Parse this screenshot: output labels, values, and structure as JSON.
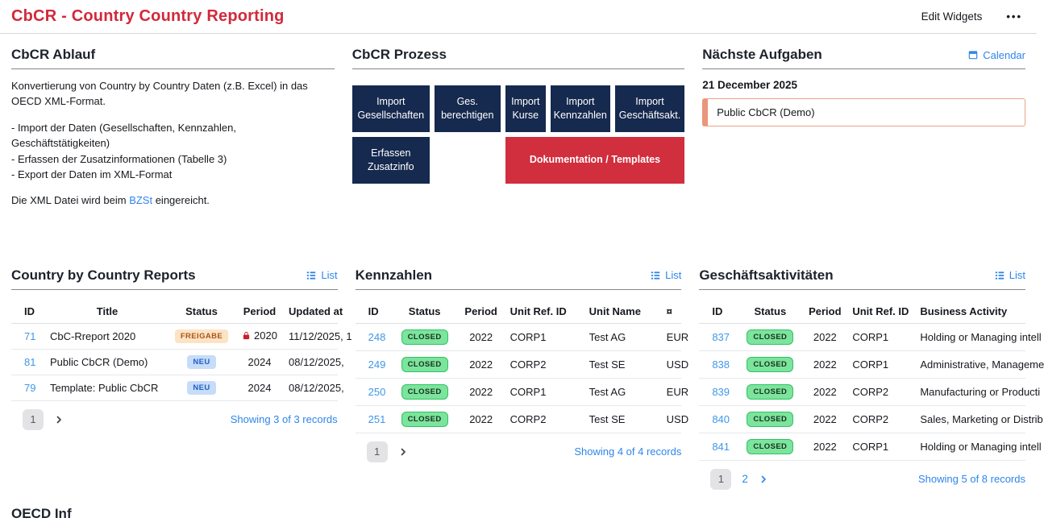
{
  "page": {
    "title": "CbCR - Country Country Reporting",
    "edit_widgets_label": "Edit Widgets",
    "overflow_menu_label": "•••"
  },
  "colors": {
    "page_title_red": "#d2293a",
    "process_navy": "#16294e",
    "process_red": "#d12e3e",
    "link_blue": "#2e86eb",
    "id_link_blue": "#3f97e9",
    "badge_freigabe_bg": "#fce3c5",
    "badge_freigabe_text": "#ad5417",
    "badge_neu_bg": "#c6dcf8",
    "badge_neu_text": "#2060c8",
    "badge_closed_bg": "#7ce49c",
    "badge_closed_border": "#2fc363",
    "task_card_border": "#eda288",
    "task_card_bar": "#e9967a",
    "lock_red": "#c8202f"
  },
  "icons": {
    "overflow_menu": "ellipsis-icon",
    "calendar": "calendar-icon",
    "list": "list-icon",
    "lock": "lock-icon",
    "next_page": "chevron-right-icon"
  },
  "ablauf": {
    "title": "CbCR Ablauf",
    "intro": "Konvertierung von Country by Country Daten (z.B. Excel) in das OECD XML-Format.",
    "bullets": [
      "- Import der Daten (Gesellschaften, Kennzahlen, Geschäftstätigkeiten)",
      "- Erfassen der Zusatzinformationen (Tabelle 3)",
      "- Export der Daten im XML-Format"
    ],
    "footer_pre": "Die XML Datei wird beim ",
    "footer_link": "BZSt",
    "footer_post": " eingereicht."
  },
  "prozess": {
    "title": "CbCR Prozess",
    "buttons_row1": [
      "Import Gesellschaften",
      "Ges. berechtigen",
      "Import Kurse",
      "Import Kennzahlen",
      "Import Geschäftsakt."
    ],
    "button_erfassen": "Erfassen Zusatzinfo",
    "button_doku": "Dokumentation / Templates"
  },
  "aufgaben": {
    "title": "Nächste Aufgaben",
    "calendar_label": "Calendar",
    "date": "21 December 2025",
    "task": "Public CbCR (Demo)"
  },
  "reports": {
    "title": "Country by Country Reports",
    "list_label": "List",
    "columns": [
      "ID",
      "Title",
      "Status",
      "Period",
      "Updated at"
    ],
    "rows": [
      {
        "id": "71",
        "title": "CbC-Rreport 2020",
        "status": "FREIGABE",
        "locked": true,
        "period": "2020",
        "updated": "11/12/2025, 1"
      },
      {
        "id": "81",
        "title": "Public CbCR (Demo)",
        "status": "NEU",
        "locked": false,
        "period": "2024",
        "updated": "08/12/2025,"
      },
      {
        "id": "79",
        "title": "Template: Public CbCR",
        "status": "NEU",
        "locked": false,
        "period": "2024",
        "updated": "08/12/2025,"
      }
    ],
    "pagination": {
      "pages": [
        "1"
      ],
      "active": "1",
      "next_enabled": false,
      "showing": "Showing 3 of 3 records"
    }
  },
  "kennzahlen": {
    "title": "Kennzahlen",
    "list_label": "List",
    "columns": [
      "ID",
      "Status",
      "Period",
      "Unit Ref. ID",
      "Unit Name",
      "¤"
    ],
    "rows": [
      {
        "id": "248",
        "status": "CLOSED",
        "period": "2022",
        "unit_ref": "CORP1",
        "unit_name": "Test AG",
        "currency": "EUR"
      },
      {
        "id": "249",
        "status": "CLOSED",
        "period": "2022",
        "unit_ref": "CORP2",
        "unit_name": "Test SE",
        "currency": "USD"
      },
      {
        "id": "250",
        "status": "CLOSED",
        "period": "2022",
        "unit_ref": "CORP1",
        "unit_name": "Test AG",
        "currency": "EUR"
      },
      {
        "id": "251",
        "status": "CLOSED",
        "period": "2022",
        "unit_ref": "CORP2",
        "unit_name": "Test SE",
        "currency": "USD"
      }
    ],
    "pagination": {
      "pages": [
        "1"
      ],
      "active": "1",
      "next_enabled": false,
      "showing": "Showing 4 of 4 records"
    }
  },
  "aktivitaeten": {
    "title": "Geschäftsaktivitäten",
    "list_label": "List",
    "columns": [
      "ID",
      "Status",
      "Period",
      "Unit Ref. ID",
      "Business Activity"
    ],
    "rows": [
      {
        "id": "837",
        "status": "CLOSED",
        "period": "2022",
        "unit_ref": "CORP1",
        "activity": "Holding or Managing intell"
      },
      {
        "id": "838",
        "status": "CLOSED",
        "period": "2022",
        "unit_ref": "CORP1",
        "activity": "Administrative, Manageme"
      },
      {
        "id": "839",
        "status": "CLOSED",
        "period": "2022",
        "unit_ref": "CORP2",
        "activity": "Manufacturing or Producti"
      },
      {
        "id": "840",
        "status": "CLOSED",
        "period": "2022",
        "unit_ref": "CORP2",
        "activity": "Sales, Marketing or Distrib"
      },
      {
        "id": "841",
        "status": "CLOSED",
        "period": "2022",
        "unit_ref": "CORP1",
        "activity": "Holding or Managing intell"
      }
    ],
    "pagination": {
      "pages": [
        "1",
        "2"
      ],
      "active": "1",
      "next_enabled": true,
      "showing": "Showing 5 of 8 records"
    }
  },
  "oecd_partial": {
    "title": "OECD Inf"
  }
}
